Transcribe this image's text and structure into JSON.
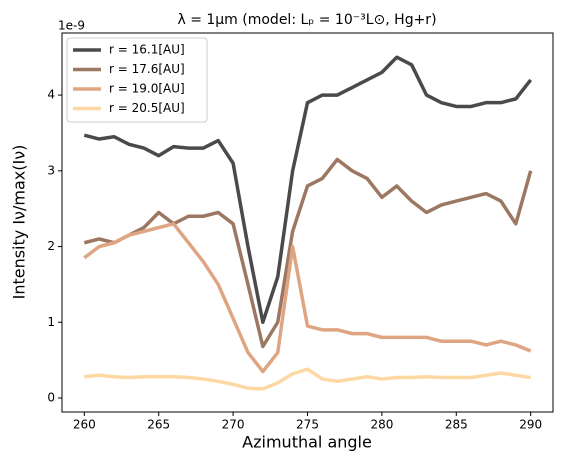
{
  "chart_data": {
    "type": "line",
    "title": "λ = 1μm (model: Lₚ = 10⁻³L⊙, Hg+r)",
    "x_label": "Azimuthal angle",
    "y_label": "Intensity Iν/max(Iν)",
    "y_offset_label": "1e-9",
    "x": [
      260,
      261,
      262,
      263,
      264,
      265,
      266,
      267,
      268,
      269,
      270,
      271,
      272,
      273,
      274,
      275,
      276,
      277,
      278,
      279,
      280,
      281,
      282,
      283,
      284,
      285,
      286,
      287,
      288,
      289,
      290
    ],
    "series": [
      {
        "name": "r = 16.1[AU]",
        "color": "#4a4a4a",
        "values": [
          3.47,
          3.42,
          3.45,
          3.35,
          3.3,
          3.2,
          3.32,
          3.3,
          3.3,
          3.4,
          3.1,
          2.0,
          1.0,
          1.6,
          3.0,
          3.9,
          4.0,
          4.0,
          4.1,
          4.2,
          4.3,
          4.5,
          4.4,
          4.0,
          3.9,
          3.85,
          3.85,
          3.9,
          3.9,
          3.95,
          4.2
        ]
      },
      {
        "name": "r = 17.6[AU]",
        "color": "#9c7761",
        "values": [
          2.05,
          2.1,
          2.05,
          2.15,
          2.25,
          2.45,
          2.3,
          2.4,
          2.4,
          2.45,
          2.3,
          1.5,
          0.68,
          1.0,
          2.2,
          2.8,
          2.9,
          3.15,
          3.0,
          2.9,
          2.65,
          2.8,
          2.6,
          2.45,
          2.55,
          2.6,
          2.65,
          2.7,
          2.6,
          2.3,
          3.0
        ]
      },
      {
        "name": "r = 19.0[AU]",
        "color": "#dfa582",
        "values": [
          1.85,
          2.0,
          2.05,
          2.15,
          2.2,
          2.25,
          2.3,
          2.05,
          1.8,
          1.5,
          1.05,
          0.6,
          0.35,
          0.6,
          2.0,
          0.95,
          0.9,
          0.9,
          0.85,
          0.85,
          0.8,
          0.8,
          0.8,
          0.8,
          0.75,
          0.75,
          0.75,
          0.7,
          0.75,
          0.7,
          0.62
        ]
      },
      {
        "name": "r = 20.5[AU]",
        "color": "#fdd8a2",
        "values": [
          0.28,
          0.3,
          0.28,
          0.27,
          0.28,
          0.28,
          0.28,
          0.27,
          0.25,
          0.22,
          0.18,
          0.13,
          0.12,
          0.2,
          0.32,
          0.38,
          0.25,
          0.22,
          0.25,
          0.28,
          0.25,
          0.27,
          0.27,
          0.28,
          0.27,
          0.27,
          0.27,
          0.3,
          0.33,
          0.3,
          0.27
        ]
      }
    ],
    "xlim": [
      258.5,
      291.5
    ],
    "xticks": [
      260,
      265,
      270,
      275,
      280,
      285,
      290
    ],
    "ylim": [
      -0.185,
      4.82
    ],
    "yticks": [
      0,
      1,
      2,
      3,
      4
    ],
    "legend": "upper left",
    "grid": false
  }
}
